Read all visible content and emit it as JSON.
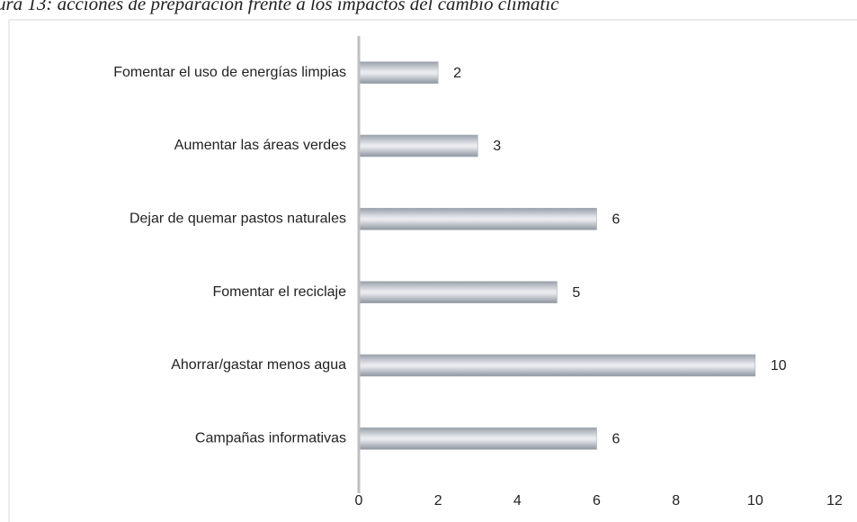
{
  "chart_data": {
    "type": "hbar",
    "title": "ura 13: acciones de preparación frente a los impactos del cambio climátic",
    "categories": [
      "Fomentar el uso de energías limpias",
      "Aumentar las áreas verdes",
      "Dejar de quemar pastos naturales",
      "Fomentar el reciclaje",
      "Ahorrar/gastar menos agua",
      "Campañas informativas"
    ],
    "values": [
      2,
      3,
      6,
      5,
      10,
      6
    ],
    "color": "#c9cdd3",
    "xlim": [
      0,
      12
    ],
    "xticks": [
      0,
      2,
      4,
      6,
      8,
      10,
      12
    ],
    "grid": false
  }
}
